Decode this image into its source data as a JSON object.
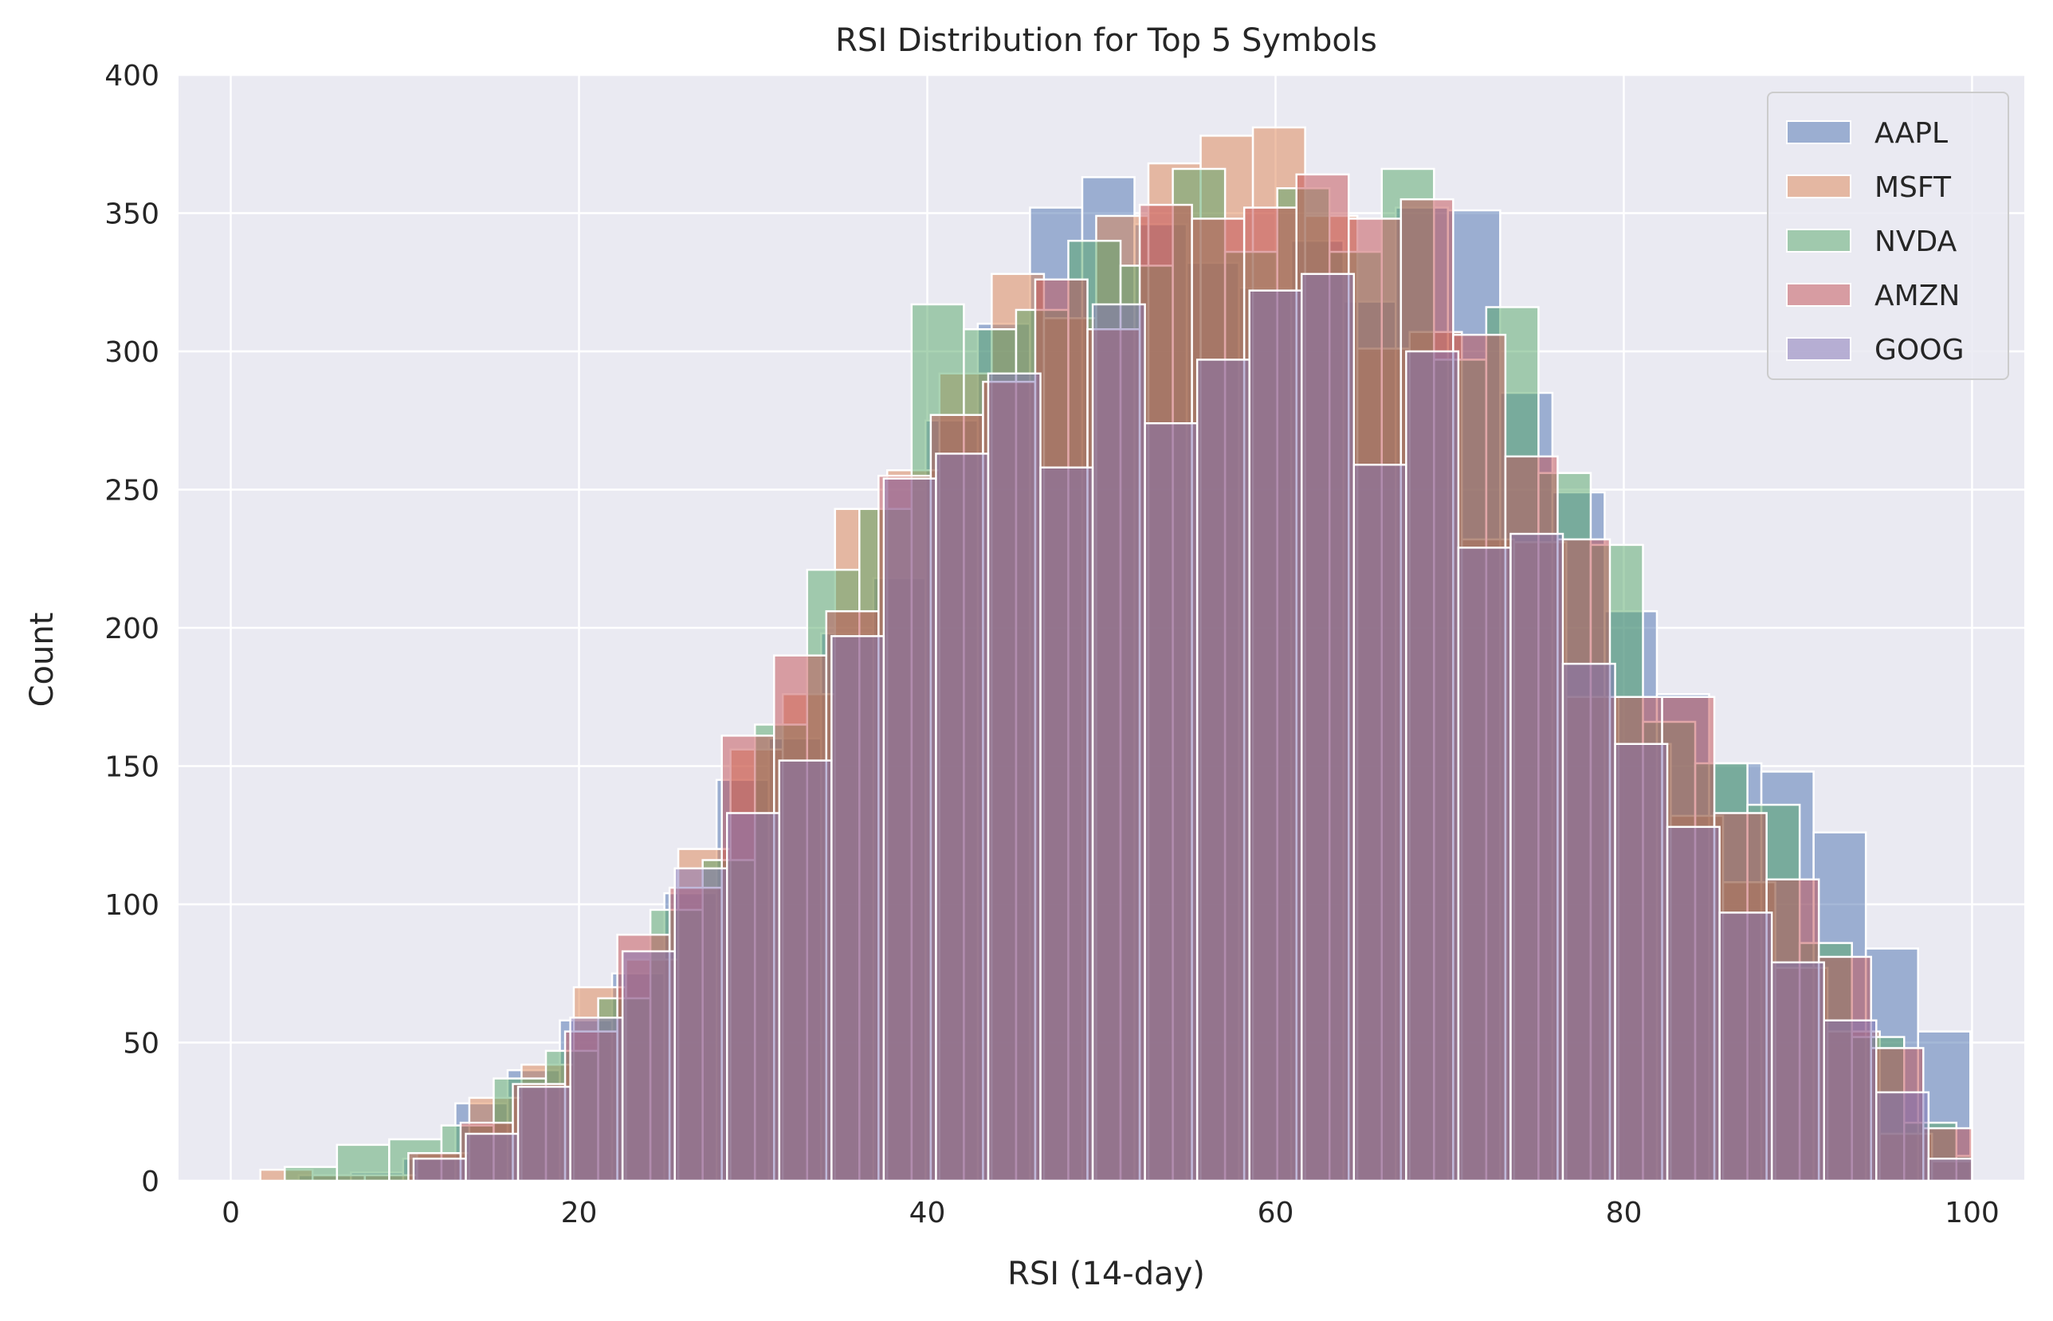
{
  "chart_data": {
    "type": "bar",
    "title": "RSI Distribution for Top 5 Symbols",
    "xlabel": "RSI (14-day)",
    "ylabel": "Count",
    "xlim": [
      -3,
      103
    ],
    "ylim": [
      0,
      400
    ],
    "xticks": [
      0,
      20,
      40,
      60,
      80,
      100
    ],
    "yticks": [
      0,
      50,
      100,
      150,
      200,
      250,
      300,
      350,
      400
    ],
    "grid": true,
    "legend_position": "top-right",
    "bar_opacity": 0.5,
    "series": [
      {
        "name": "AAPL",
        "color": "#4c72b0",
        "bins": [
          [
            3.9,
            6.9,
            2
          ],
          [
            6.9,
            9.9,
            3
          ],
          [
            9.9,
            12.9,
            8
          ],
          [
            12.9,
            15.9,
            28
          ],
          [
            15.9,
            18.9,
            40
          ],
          [
            18.9,
            21.9,
            58
          ],
          [
            21.9,
            24.9,
            75
          ],
          [
            24.9,
            27.9,
            104
          ],
          [
            27.9,
            30.9,
            145
          ],
          [
            30.9,
            33.9,
            160
          ],
          [
            33.9,
            36.9,
            198
          ],
          [
            36.9,
            39.9,
            218
          ],
          [
            39.9,
            42.9,
            275
          ],
          [
            42.9,
            45.9,
            310
          ],
          [
            45.9,
            48.9,
            352
          ],
          [
            48.9,
            51.9,
            363
          ],
          [
            51.9,
            54.9,
            346
          ],
          [
            54.9,
            57.9,
            332
          ],
          [
            57.9,
            60.9,
            323
          ],
          [
            60.9,
            63.9,
            340
          ],
          [
            63.9,
            66.9,
            318
          ],
          [
            66.9,
            69.9,
            352
          ],
          [
            69.9,
            72.9,
            351
          ],
          [
            72.9,
            75.9,
            285
          ],
          [
            75.9,
            78.9,
            249
          ],
          [
            78.9,
            81.9,
            206
          ],
          [
            81.9,
            84.9,
            176
          ],
          [
            84.9,
            87.9,
            151
          ],
          [
            87.9,
            90.9,
            148
          ],
          [
            90.9,
            93.9,
            126
          ],
          [
            93.9,
            96.9,
            84
          ],
          [
            96.9,
            99.9,
            54
          ]
        ]
      },
      {
        "name": "MSFT",
        "color": "#dd8452",
        "bins": [
          [
            1.7,
            4.7,
            4
          ],
          [
            4.7,
            7.7,
            2
          ],
          [
            7.7,
            10.7,
            2
          ],
          [
            10.7,
            13.7,
            10
          ],
          [
            13.7,
            16.7,
            30
          ],
          [
            16.7,
            19.7,
            42
          ],
          [
            19.7,
            22.7,
            70
          ],
          [
            22.7,
            25.7,
            80
          ],
          [
            25.7,
            28.7,
            120
          ],
          [
            28.7,
            31.7,
            156
          ],
          [
            31.7,
            34.7,
            176
          ],
          [
            34.7,
            37.7,
            243
          ],
          [
            37.7,
            40.7,
            257
          ],
          [
            40.7,
            43.7,
            292
          ],
          [
            43.7,
            46.7,
            328
          ],
          [
            46.7,
            49.7,
            312
          ],
          [
            49.7,
            52.7,
            349
          ],
          [
            52.7,
            55.7,
            368
          ],
          [
            55.7,
            58.7,
            378
          ],
          [
            58.7,
            61.7,
            381
          ],
          [
            61.7,
            64.7,
            349
          ],
          [
            64.7,
            67.7,
            301
          ],
          [
            67.7,
            70.7,
            307
          ],
          [
            70.7,
            73.7,
            232
          ],
          [
            73.7,
            76.7,
            231
          ],
          [
            76.7,
            79.7,
            175
          ],
          [
            79.7,
            82.7,
            158
          ],
          [
            82.7,
            85.7,
            132
          ],
          [
            85.7,
            88.7,
            108
          ],
          [
            88.7,
            91.7,
            77
          ],
          [
            91.7,
            94.7,
            54
          ],
          [
            94.7,
            97.7,
            17
          ],
          [
            97.7,
            100,
            7
          ]
        ]
      },
      {
        "name": "NVDA",
        "color": "#55a868",
        "bins": [
          [
            3.1,
            6.1,
            5
          ],
          [
            6.1,
            9.1,
            13
          ],
          [
            9.1,
            12.1,
            15
          ],
          [
            12.1,
            15.1,
            20
          ],
          [
            15.1,
            18.1,
            37
          ],
          [
            18.1,
            21.1,
            47
          ],
          [
            21.1,
            24.1,
            66
          ],
          [
            24.1,
            27.1,
            98
          ],
          [
            27.1,
            30.1,
            116
          ],
          [
            30.1,
            33.1,
            165
          ],
          [
            33.1,
            36.1,
            221
          ],
          [
            36.1,
            39.1,
            243
          ],
          [
            39.1,
            42.1,
            317
          ],
          [
            42.1,
            45.1,
            308
          ],
          [
            45.1,
            48.1,
            315
          ],
          [
            48.1,
            51.1,
            340
          ],
          [
            51.1,
            54.1,
            331
          ],
          [
            54.1,
            57.1,
            366
          ],
          [
            57.1,
            60.1,
            336
          ],
          [
            60.1,
            63.1,
            359
          ],
          [
            63.1,
            66.1,
            336
          ],
          [
            66.1,
            69.1,
            366
          ],
          [
            69.1,
            72.1,
            297
          ],
          [
            72.1,
            75.1,
            316
          ],
          [
            75.1,
            78.1,
            256
          ],
          [
            78.1,
            81.1,
            230
          ],
          [
            81.1,
            84.1,
            166
          ],
          [
            84.1,
            87.1,
            151
          ],
          [
            87.1,
            90.1,
            136
          ],
          [
            90.1,
            93.1,
            86
          ],
          [
            93.1,
            96.1,
            52
          ],
          [
            96.1,
            99.1,
            21
          ],
          [
            99.1,
            100,
            9
          ]
        ]
      },
      {
        "name": "AMZN",
        "color": "#c44e52",
        "bins": [
          [
            10.2,
            13.2,
            10
          ],
          [
            13.2,
            16.2,
            21
          ],
          [
            16.2,
            19.2,
            35
          ],
          [
            19.2,
            22.2,
            54
          ],
          [
            22.2,
            25.2,
            89
          ],
          [
            25.2,
            28.2,
            106
          ],
          [
            28.2,
            31.2,
            161
          ],
          [
            31.2,
            34.2,
            190
          ],
          [
            34.2,
            37.2,
            206
          ],
          [
            37.2,
            40.2,
            255
          ],
          [
            40.2,
            43.2,
            277
          ],
          [
            43.2,
            46.2,
            289
          ],
          [
            46.2,
            49.2,
            326
          ],
          [
            49.2,
            52.2,
            308
          ],
          [
            52.2,
            55.2,
            353
          ],
          [
            55.2,
            58.2,
            348
          ],
          [
            58.2,
            61.2,
            352
          ],
          [
            61.2,
            64.2,
            364
          ],
          [
            64.2,
            67.2,
            348
          ],
          [
            67.2,
            70.2,
            355
          ],
          [
            70.2,
            73.2,
            306
          ],
          [
            73.2,
            76.2,
            262
          ],
          [
            76.2,
            79.2,
            232
          ],
          [
            79.2,
            82.2,
            175
          ],
          [
            82.2,
            85.2,
            175
          ],
          [
            85.2,
            88.2,
            133
          ],
          [
            88.2,
            91.2,
            109
          ],
          [
            91.2,
            94.2,
            81
          ],
          [
            94.2,
            97.2,
            48
          ],
          [
            97.2,
            100,
            19
          ]
        ]
      },
      {
        "name": "GOOG",
        "color": "#8172b3",
        "bins": [
          [
            10.5,
            13.5,
            8
          ],
          [
            13.5,
            16.5,
            17
          ],
          [
            16.5,
            19.5,
            34
          ],
          [
            19.5,
            22.5,
            59
          ],
          [
            22.5,
            25.5,
            83
          ],
          [
            25.5,
            28.5,
            113
          ],
          [
            28.5,
            31.5,
            133
          ],
          [
            31.5,
            34.5,
            152
          ],
          [
            34.5,
            37.5,
            197
          ],
          [
            37.5,
            40.5,
            254
          ],
          [
            40.5,
            43.5,
            263
          ],
          [
            43.5,
            46.5,
            292
          ],
          [
            46.5,
            49.5,
            258
          ],
          [
            49.5,
            52.5,
            317
          ],
          [
            52.5,
            55.5,
            274
          ],
          [
            55.5,
            58.5,
            297
          ],
          [
            58.5,
            61.5,
            322
          ],
          [
            61.5,
            64.5,
            328
          ],
          [
            64.5,
            67.5,
            259
          ],
          [
            67.5,
            70.5,
            300
          ],
          [
            70.5,
            73.5,
            229
          ],
          [
            73.5,
            76.5,
            234
          ],
          [
            76.5,
            79.5,
            187
          ],
          [
            79.5,
            82.5,
            158
          ],
          [
            82.5,
            85.5,
            128
          ],
          [
            85.5,
            88.5,
            97
          ],
          [
            88.5,
            91.5,
            79
          ],
          [
            91.5,
            94.5,
            58
          ],
          [
            94.5,
            97.5,
            32
          ],
          [
            97.5,
            100,
            8
          ]
        ]
      }
    ]
  }
}
